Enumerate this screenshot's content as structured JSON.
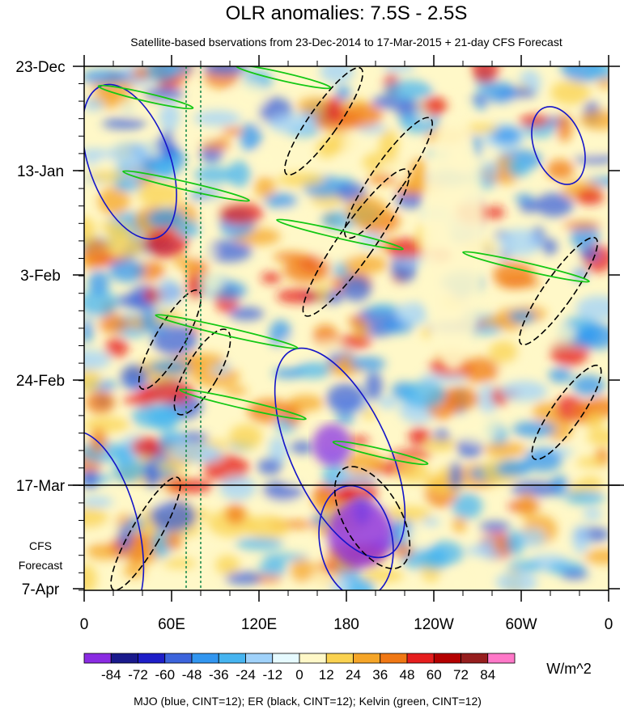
{
  "chart_data": {
    "type": "heatmap",
    "title": "OLR anomalies: 7.5S - 2.5S",
    "subtitle": "Satellite-based bservations from 23-Dec-2014 to 17-Mar-2015 + 21-day CFS Forecast",
    "x_ticks": [
      "0",
      "60E",
      "120E",
      "180",
      "120W",
      "60W",
      "0"
    ],
    "y_ticks": [
      "23-Dec",
      "13-Jan",
      "3-Feb",
      "24-Feb",
      "17-Mar",
      "7-Apr"
    ],
    "forecast_label": [
      "CFS",
      "Forecast"
    ],
    "forecast_start": "17-Mar",
    "colorbar_labels": [
      "-84",
      "-72",
      "-60",
      "-48",
      "-36",
      "-24",
      "-12",
      "0",
      "12",
      "24",
      "36",
      "48",
      "60",
      "72",
      "84"
    ],
    "colorbar_colors": [
      "#8a2be2",
      "#1a1a8c",
      "#1e1ec8",
      "#3c64dc",
      "#3296f0",
      "#46b4f0",
      "#a0d2fa",
      "#e6faff",
      "#fff8c8",
      "#fad250",
      "#f5a528",
      "#f07814",
      "#e61e1e",
      "#b40000",
      "#961e1e",
      "#ff78c8"
    ],
    "units": "W/m^2",
    "footer": "MJO (blue, CINT=12); ER (black, CINT=12); Kelvin (green, CINT=12)",
    "contour_colors": {
      "mjo": "#1414c8",
      "er": "#000000",
      "kelvin": "#14c814"
    },
    "reference_line_color": "#1e8c50"
  }
}
